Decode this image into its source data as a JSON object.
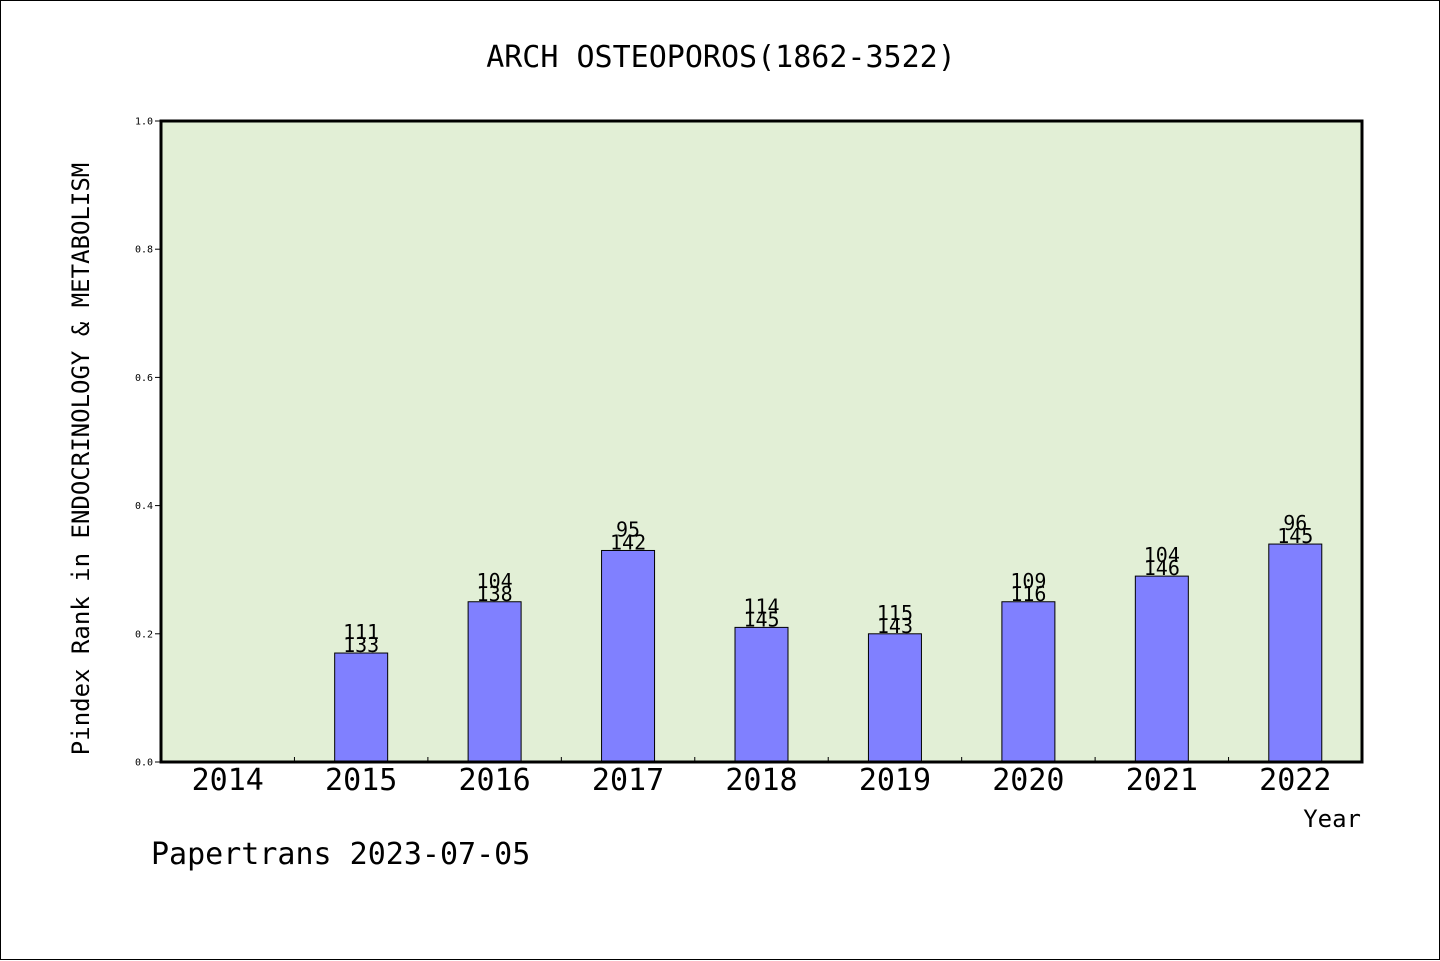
{
  "chart_data": {
    "type": "bar",
    "title": "ARCH OSTEOPOROS(1862-3522)",
    "xlabel": "Year",
    "ylabel": "Pindex Rank in ENDOCRINOLOGY & METABOLISM",
    "ylim": [
      0,
      1.0
    ],
    "yticks": [
      "0.0",
      "0.2",
      "0.4",
      "0.6",
      "0.8",
      "1.0"
    ],
    "categories": [
      "2014",
      "2015",
      "2016",
      "2017",
      "2018",
      "2019",
      "2020",
      "2021",
      "2022"
    ],
    "values": [
      null,
      0.17,
      0.25,
      0.33,
      0.21,
      0.2,
      0.25,
      0.29,
      0.34
    ],
    "labels_top": [
      "",
      "111",
      "104",
      "95",
      "114",
      "115",
      "109",
      "104",
      "96"
    ],
    "labels_bottom": [
      "",
      "133",
      "138",
      "142",
      "145",
      "143",
      "116",
      "146",
      "145"
    ],
    "grid": false,
    "colors": {
      "plot_bg": "#e2efd6",
      "bar": "#8080ff"
    }
  },
  "footer": {
    "credit": "Papertrans 2023-07-05"
  }
}
